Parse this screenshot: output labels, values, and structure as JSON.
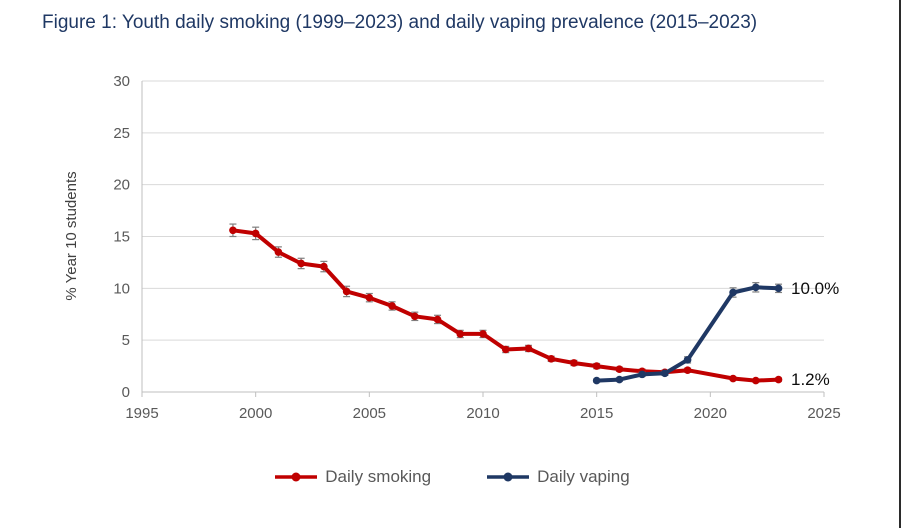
{
  "page": {
    "title": "Figure 1: Youth daily smoking (1999–2023) and daily vaping prevalence (2015–2023)"
  },
  "chart_data": {
    "type": "line",
    "title": "Figure 1: Youth daily smoking (1999–2023) and daily vaping prevalence (2015–2023)",
    "xlabel": "",
    "ylabel": "% Year 10 students",
    "xlim": [
      1995,
      2025
    ],
    "ylim": [
      0,
      30
    ],
    "x_ticks": [
      "1995",
      "2000",
      "2005",
      "2010",
      "2015",
      "2020",
      "2025"
    ],
    "y_ticks": [
      "0",
      "5",
      "10",
      "15",
      "20",
      "25",
      "30"
    ],
    "grid": "horizontal",
    "legend_position": "bottom",
    "series": [
      {
        "name": "Daily smoking",
        "color": "#C00000",
        "x": [
          1999,
          2000,
          2001,
          2002,
          2003,
          2004,
          2005,
          2006,
          2007,
          2008,
          2009,
          2010,
          2011,
          2012,
          2013,
          2014,
          2015,
          2016,
          2017,
          2018,
          2019,
          2021,
          2022,
          2023
        ],
        "values": [
          15.6,
          15.3,
          13.5,
          12.4,
          12.1,
          9.7,
          9.1,
          8.3,
          7.3,
          7.0,
          5.6,
          5.6,
          4.1,
          4.2,
          3.2,
          2.8,
          2.5,
          2.2,
          2.0,
          1.9,
          2.1,
          1.3,
          1.1,
          1.2
        ],
        "errors": [
          0.6,
          0.6,
          0.5,
          0.5,
          0.5,
          0.5,
          0.4,
          0.4,
          0.4,
          0.4,
          0.35,
          0.35,
          0.3,
          0.3,
          0.25,
          0.25,
          0.25,
          0.2,
          0.2,
          0.2,
          0.2,
          0.15,
          0.15,
          0.15
        ],
        "end_label": "1.2%"
      },
      {
        "name": "Daily vaping",
        "color": "#1F3864",
        "x": [
          2015,
          2016,
          2017,
          2018,
          2019,
          2021,
          2022,
          2023
        ],
        "values": [
          1.1,
          1.2,
          1.7,
          1.8,
          3.1,
          9.6,
          10.1,
          10.0
        ],
        "errors": [
          0.15,
          0.15,
          0.2,
          0.2,
          0.3,
          0.45,
          0.45,
          0.4
        ],
        "end_label": "10.0%"
      }
    ]
  },
  "colors": {
    "title_text": "#1F3864",
    "axis_text": "#595959",
    "axis_title_text": "#404040",
    "gridline": "#D9D9D9",
    "axis_line": "#BFBFBF",
    "error_bar": "#7F7F7F",
    "end_label_text": "#0D0D0D",
    "right_border": "#2B2B2B",
    "background": "#FFFFFF"
  }
}
